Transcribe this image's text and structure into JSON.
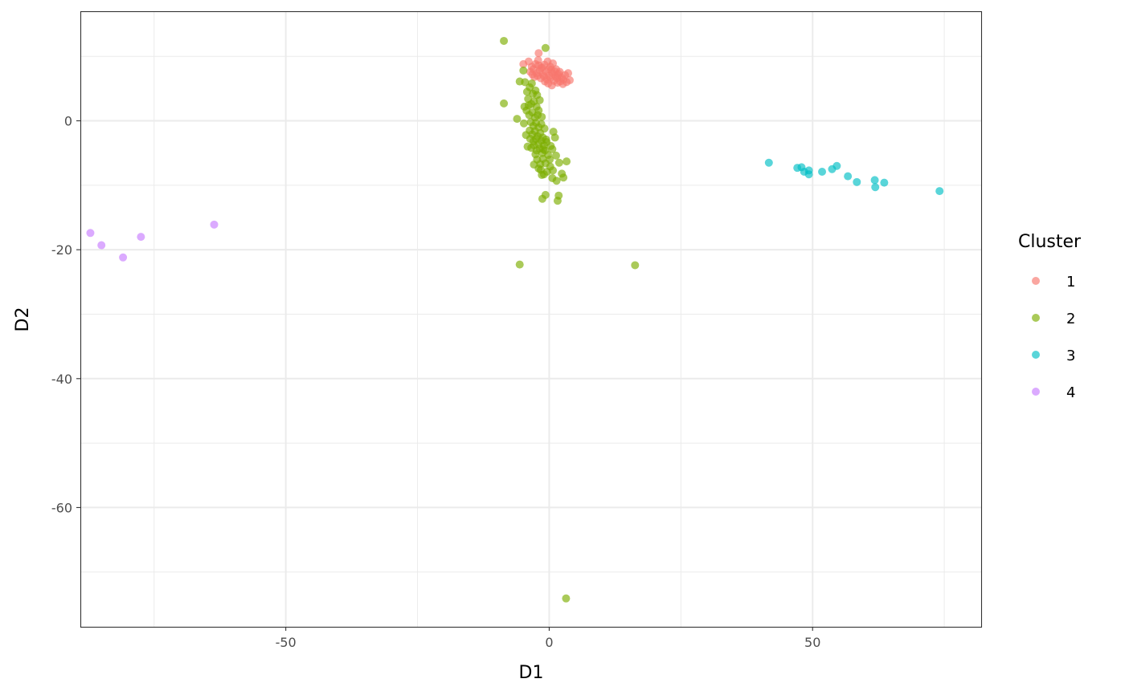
{
  "chart_data": {
    "type": "scatter",
    "xlabel": "D1",
    "ylabel": "D2",
    "xlim": [
      -89,
      82
    ],
    "ylim": [
      -78.5,
      17
    ],
    "x_ticks": [
      -50,
      0,
      50
    ],
    "x_tick_labels": [
      "-50",
      "0",
      "50"
    ],
    "y_ticks": [
      0,
      -20,
      -40,
      -60
    ],
    "y_tick_labels": [
      "0",
      "-20",
      "-40",
      "-60"
    ],
    "grid": true,
    "legend": {
      "title": "Cluster",
      "position": "right"
    },
    "series": [
      {
        "name": "1",
        "color": "#F8766D",
        "points": [
          [
            -2.0,
            10.5
          ],
          [
            -4.9,
            8.8
          ],
          [
            -3.9,
            9.2
          ],
          [
            -3.3,
            8.4
          ],
          [
            -2.6,
            8.8
          ],
          [
            -2.1,
            9.4
          ],
          [
            -1.5,
            8.2
          ],
          [
            -0.9,
            8.7
          ],
          [
            -0.3,
            9.2
          ],
          [
            0.2,
            8.4
          ],
          [
            0.7,
            8.9
          ],
          [
            1.3,
            8.0
          ],
          [
            -3.6,
            7.6
          ],
          [
            -3.0,
            8.0
          ],
          [
            -2.4,
            7.4
          ],
          [
            -1.8,
            7.8
          ],
          [
            -1.2,
            7.2
          ],
          [
            -0.6,
            7.6
          ],
          [
            0.0,
            7.0
          ],
          [
            0.6,
            7.4
          ],
          [
            1.2,
            6.9
          ],
          [
            1.8,
            7.3
          ],
          [
            2.4,
            6.7
          ],
          [
            3.0,
            7.1
          ],
          [
            3.6,
            7.4
          ],
          [
            -2.8,
            6.8
          ],
          [
            -2.2,
            7.0
          ],
          [
            -1.6,
            6.6
          ],
          [
            -1.0,
            6.9
          ],
          [
            -0.4,
            6.4
          ],
          [
            0.3,
            6.7
          ],
          [
            0.9,
            6.2
          ],
          [
            1.5,
            6.6
          ],
          [
            2.1,
            6.1
          ],
          [
            2.7,
            6.4
          ],
          [
            3.3,
            6.0
          ],
          [
            3.9,
            6.3
          ],
          [
            -0.2,
            5.8
          ],
          [
            0.5,
            5.5
          ],
          [
            1.6,
            5.9
          ],
          [
            2.6,
            5.7
          ],
          [
            -1.3,
            8.3
          ],
          [
            -0.1,
            8.0
          ],
          [
            1.0,
            7.7
          ],
          [
            2.0,
            7.6
          ],
          [
            -2.0,
            8.6
          ],
          [
            0.4,
            7.9
          ],
          [
            1.6,
            7.1
          ],
          [
            -3.2,
            7.2
          ],
          [
            -0.8,
            6.1
          ]
        ]
      },
      {
        "name": "2",
        "color": "#7CAE00",
        "points": [
          [
            -8.6,
            12.4
          ],
          [
            -0.7,
            11.3
          ],
          [
            -4.9,
            7.8
          ],
          [
            -5.6,
            6.1
          ],
          [
            -8.6,
            2.7
          ],
          [
            -6.1,
            0.3
          ],
          [
            -4.6,
            6.0
          ],
          [
            -4.2,
            4.5
          ],
          [
            -3.7,
            5.2
          ],
          [
            -3.1,
            4.2
          ],
          [
            -2.6,
            4.7
          ],
          [
            -4.0,
            3.4
          ],
          [
            -3.4,
            2.6
          ],
          [
            -2.9,
            3.0
          ],
          [
            -2.4,
            2.2
          ],
          [
            -4.3,
            1.6
          ],
          [
            -3.8,
            0.9
          ],
          [
            -3.2,
            1.3
          ],
          [
            -2.7,
            0.5
          ],
          [
            -2.2,
            0.9
          ],
          [
            -3.5,
            -0.2
          ],
          [
            -3.0,
            -0.8
          ],
          [
            -2.5,
            -0.3
          ],
          [
            -2.0,
            -1.0
          ],
          [
            -1.5,
            -0.5
          ],
          [
            -3.7,
            -1.5
          ],
          [
            -3.2,
            -2.1
          ],
          [
            -2.7,
            -1.6
          ],
          [
            -2.2,
            -2.4
          ],
          [
            -1.7,
            -1.9
          ],
          [
            -1.2,
            -2.6
          ],
          [
            -3.0,
            -3.2
          ],
          [
            -2.5,
            -2.8
          ],
          [
            -2.0,
            -3.6
          ],
          [
            -1.5,
            -3.1
          ],
          [
            -1.0,
            -3.8
          ],
          [
            -0.5,
            -3.3
          ],
          [
            -4.1,
            -4.0
          ],
          [
            -3.4,
            -4.2
          ],
          [
            -2.9,
            -3.8
          ],
          [
            -2.4,
            -4.6
          ],
          [
            -1.8,
            -4.3
          ],
          [
            -1.3,
            -5.0
          ],
          [
            -0.8,
            -4.6
          ],
          [
            -0.2,
            -5.3
          ],
          [
            0.3,
            -3.9
          ],
          [
            0.8,
            -1.7
          ],
          [
            1.1,
            -2.6
          ],
          [
            0.6,
            -4.4
          ],
          [
            1.3,
            -5.4
          ],
          [
            -2.3,
            -6.0
          ],
          [
            -1.7,
            -6.7
          ],
          [
            -1.2,
            -5.9
          ],
          [
            -0.7,
            -6.6
          ],
          [
            0.2,
            -7.1
          ],
          [
            0.7,
            -7.7
          ],
          [
            1.9,
            -6.5
          ],
          [
            3.3,
            -6.3
          ],
          [
            -1.6,
            -7.6
          ],
          [
            -1.0,
            -8.3
          ],
          [
            -0.4,
            -7.9
          ],
          [
            0.6,
            -8.9
          ],
          [
            1.4,
            -9.3
          ],
          [
            2.4,
            -8.2
          ],
          [
            2.7,
            -8.8
          ],
          [
            -2.9,
            -6.8
          ],
          [
            -2.0,
            -7.4
          ],
          [
            -1.4,
            -8.4
          ],
          [
            -0.7,
            -11.5
          ],
          [
            -1.3,
            -12.1
          ],
          [
            1.8,
            -11.6
          ],
          [
            1.6,
            -12.4
          ],
          [
            -5.6,
            -22.3
          ],
          [
            16.3,
            -22.4
          ],
          [
            3.2,
            -74.1
          ],
          [
            -4.7,
            2.2
          ],
          [
            -4.8,
            -0.4
          ],
          [
            -3.6,
            -2.8
          ],
          [
            -2.3,
            4.0
          ],
          [
            -1.8,
            3.2
          ],
          [
            -2.0,
            1.6
          ],
          [
            -1.4,
            0.6
          ],
          [
            -3.9,
            2.4
          ],
          [
            -0.9,
            -1.2
          ],
          [
            -0.6,
            -2.9
          ],
          [
            -1.1,
            -4.4
          ],
          [
            -2.6,
            -5.2
          ],
          [
            0.1,
            -6.0
          ],
          [
            -3.3,
            5.8
          ],
          [
            -4.4,
            -2.2
          ]
        ]
      },
      {
        "name": "3",
        "color": "#00BFC4",
        "points": [
          [
            41.7,
            -6.5
          ],
          [
            47.1,
            -7.3
          ],
          [
            47.9,
            -7.2
          ],
          [
            48.4,
            -7.9
          ],
          [
            49.3,
            -7.7
          ],
          [
            49.3,
            -8.3
          ],
          [
            51.8,
            -7.9
          ],
          [
            53.7,
            -7.5
          ],
          [
            54.6,
            -7.0
          ],
          [
            56.7,
            -8.6
          ],
          [
            58.4,
            -9.5
          ],
          [
            61.8,
            -9.2
          ],
          [
            61.9,
            -10.3
          ],
          [
            63.6,
            -9.6
          ],
          [
            74.1,
            -10.9
          ]
        ]
      },
      {
        "name": "4",
        "color": "#C77CFF",
        "points": [
          [
            -87.1,
            -17.4
          ],
          [
            -85.0,
            -19.3
          ],
          [
            -80.9,
            -21.2
          ],
          [
            -77.5,
            -18.0
          ],
          [
            -63.6,
            -16.1
          ]
        ]
      }
    ]
  }
}
